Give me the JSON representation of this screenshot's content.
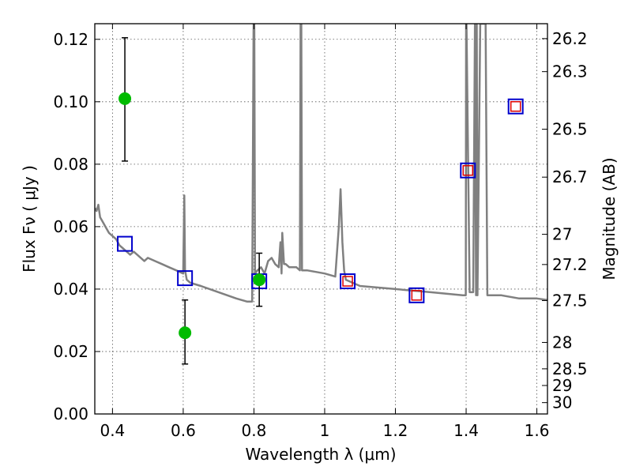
{
  "chart_data": {
    "type": "scatter",
    "title": "",
    "xlabel": "Wavelength  λ (μm)",
    "ylabel": "Flux  Fν  ( μJy )",
    "y2label": "Magnitude (AB)",
    "xlim": [
      0.35,
      1.63
    ],
    "ylim": [
      0.0,
      0.125
    ],
    "grid": true,
    "grid_style": "dotted",
    "x_ticks": [
      0.4,
      0.6,
      0.8,
      1.0,
      1.2,
      1.4,
      1.6
    ],
    "x_tick_labels": [
      "0.4",
      "0.6",
      "0.8",
      "1",
      "1.2",
      "1.4",
      "1.6"
    ],
    "y_ticks": [
      0.0,
      0.02,
      0.04,
      0.06,
      0.08,
      0.1,
      0.12
    ],
    "y_tick_labels": [
      "0.00",
      "0.02",
      "0.04",
      "0.06",
      "0.08",
      "0.10",
      "0.12"
    ],
    "y2_ticks": [
      26.2,
      26.3,
      26.5,
      26.7,
      27,
      27.2,
      27.5,
      28,
      28.5,
      29,
      30
    ],
    "y2_tick_labels": [
      "26.2",
      "26.3",
      "26.5",
      "26.7",
      "27",
      "27.2",
      "27.5",
      "28",
      "28.5",
      "29",
      "30"
    ],
    "colors": {
      "model": "#808080",
      "observed": "#00bb00",
      "model_box": "#0000cc",
      "model_box_inner": "#dd0000",
      "errorbar": "#000000",
      "grid": "#555555"
    },
    "series": [
      {
        "kind": "line",
        "x": [
          0.35,
          0.355,
          0.36,
          0.365,
          0.37,
          0.375,
          0.38,
          0.39,
          0.4,
          0.41,
          0.42,
          0.43,
          0.44,
          0.45,
          0.46,
          0.47,
          0.48,
          0.49,
          0.5,
          0.52,
          0.54,
          0.56,
          0.58,
          0.6,
          0.603,
          0.605,
          0.607,
          0.61,
          0.62,
          0.65,
          0.7,
          0.75,
          0.78,
          0.795,
          0.799,
          0.8,
          0.801,
          0.803,
          0.81,
          0.82,
          0.83,
          0.84,
          0.85,
          0.86,
          0.87,
          0.875,
          0.878,
          0.88,
          0.885,
          0.89,
          0.9,
          0.91,
          0.92,
          0.93,
          0.932,
          0.933,
          0.934,
          0.936,
          0.95,
          1.0,
          1.03,
          1.04,
          1.045,
          1.05,
          1.055,
          1.06,
          1.1,
          1.2,
          1.3,
          1.39,
          1.399,
          1.4,
          1.401,
          1.41,
          1.42,
          1.425,
          1.428,
          1.43,
          1.432,
          1.44,
          1.45,
          1.455,
          1.46,
          1.462,
          1.5,
          1.55,
          1.6,
          1.63
        ],
        "y": [
          0.066,
          0.065,
          0.067,
          0.063,
          0.062,
          0.061,
          0.06,
          0.058,
          0.057,
          0.056,
          0.054,
          0.053,
          0.052,
          0.051,
          0.052,
          0.051,
          0.05,
          0.049,
          0.05,
          0.049,
          0.048,
          0.047,
          0.046,
          0.045,
          0.07,
          0.046,
          0.045,
          0.043,
          0.042,
          0.041,
          0.039,
          0.037,
          0.036,
          0.036,
          0.125,
          0.125,
          0.125,
          0.045,
          0.046,
          0.047,
          0.045,
          0.049,
          0.05,
          0.048,
          0.047,
          0.055,
          0.045,
          0.058,
          0.048,
          0.048,
          0.047,
          0.047,
          0.047,
          0.046,
          0.125,
          0.125,
          0.125,
          0.046,
          0.046,
          0.045,
          0.044,
          0.06,
          0.072,
          0.055,
          0.046,
          0.043,
          0.041,
          0.04,
          0.039,
          0.038,
          0.038,
          0.125,
          0.125,
          0.039,
          0.039,
          0.125,
          0.038,
          0.125,
          0.038,
          0.125,
          0.125,
          0.125,
          0.038,
          0.038,
          0.038,
          0.037,
          0.037,
          0.0365
        ]
      },
      {
        "kind": "squares",
        "x": [
          0.435,
          0.605,
          0.815,
          1.065,
          1.26,
          1.405,
          1.54
        ],
        "y": [
          0.0545,
          0.0435,
          0.0425,
          0.0425,
          0.038,
          0.078,
          0.0985
        ]
      },
      {
        "kind": "inner-squares",
        "x": [
          1.065,
          1.26,
          1.405,
          1.54
        ],
        "y": [
          0.0425,
          0.038,
          0.078,
          0.0985
        ]
      },
      {
        "kind": "points-with-errors",
        "x": [
          0.435,
          0.605,
          0.815
        ],
        "y": [
          0.101,
          0.026,
          0.043
        ],
        "yerr_low": [
          0.081,
          0.016,
          0.0345
        ],
        "yerr_high": [
          0.1205,
          0.0365,
          0.0515
        ]
      }
    ]
  }
}
